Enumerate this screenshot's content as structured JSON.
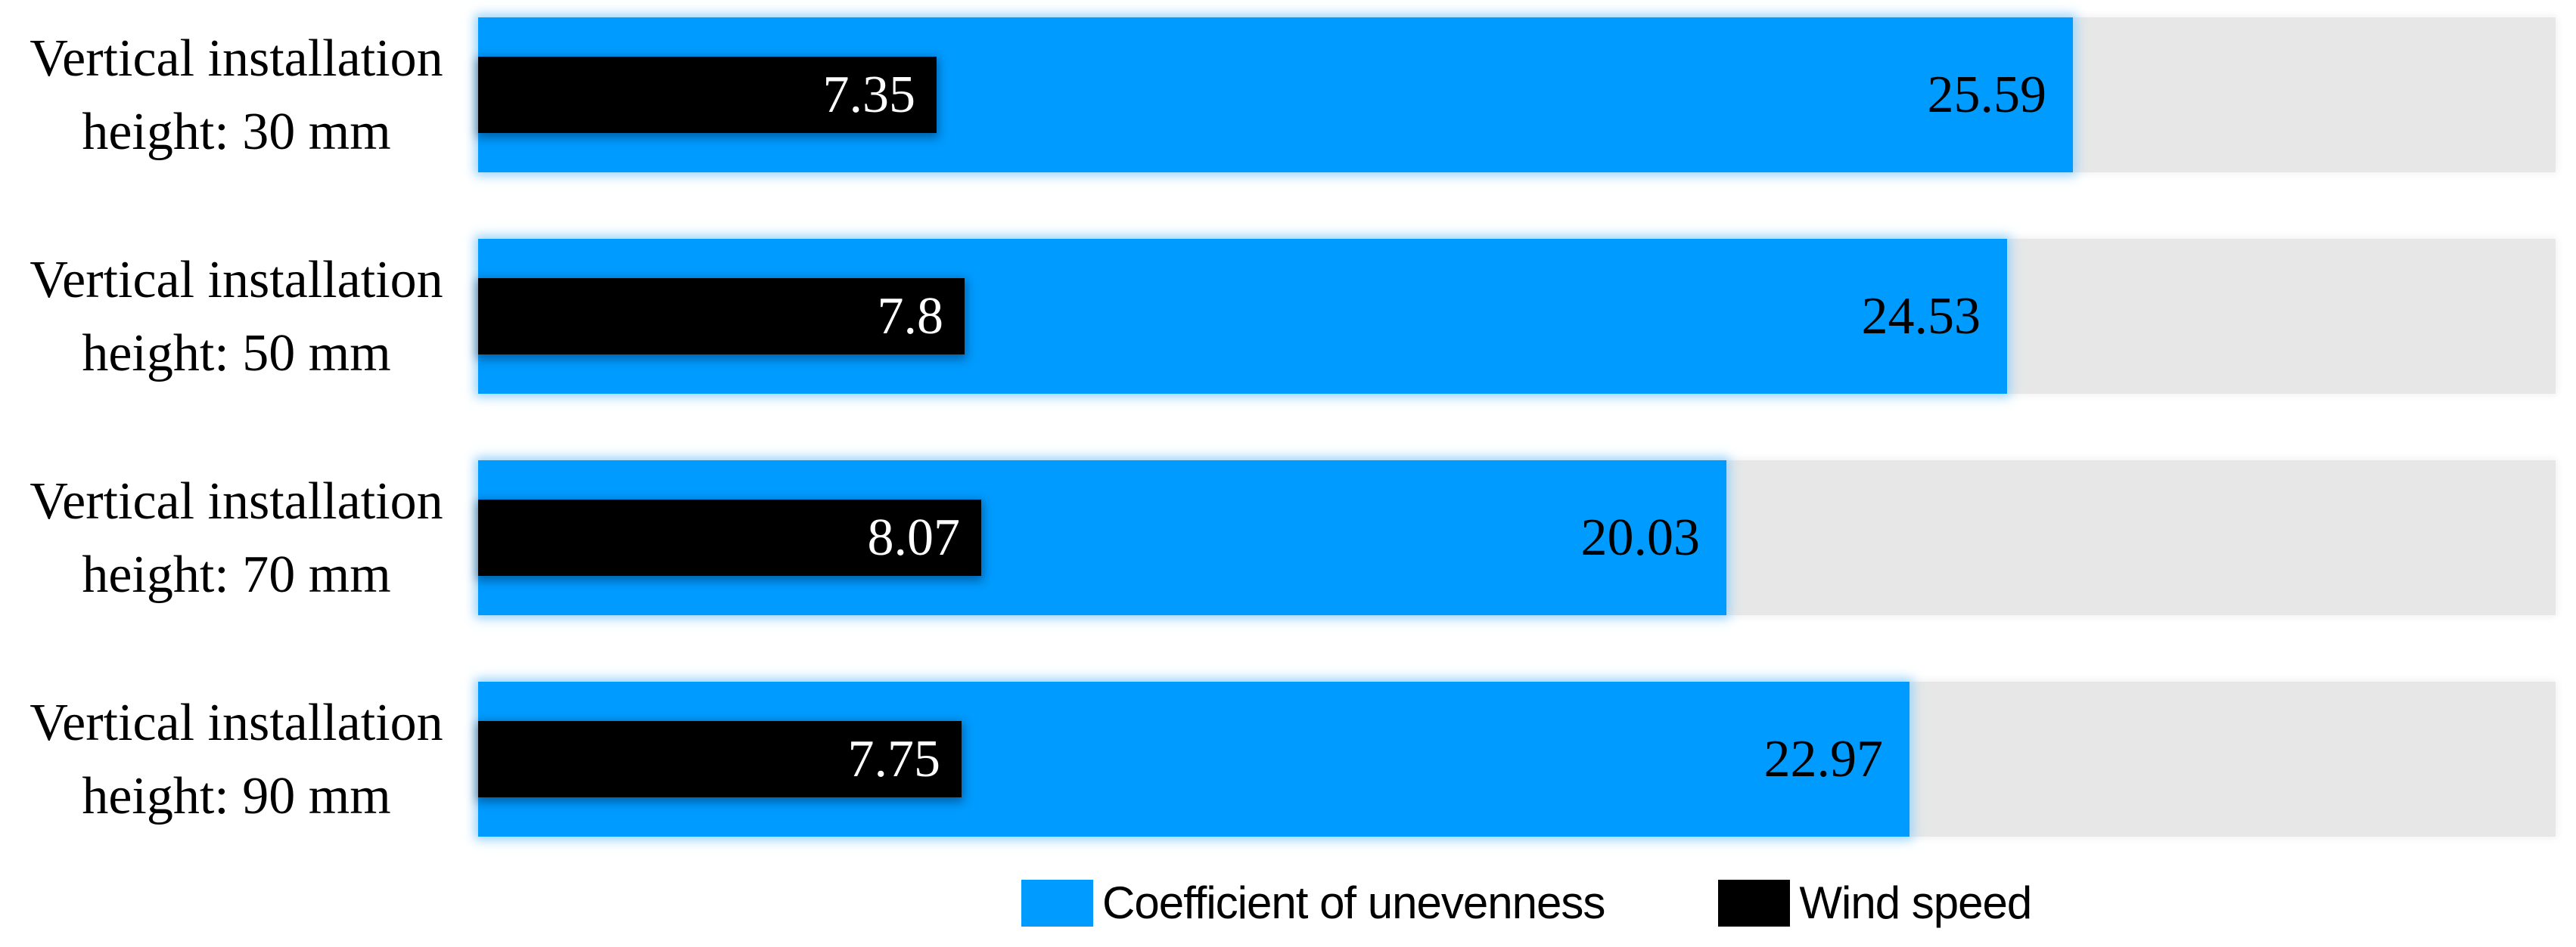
{
  "colors": {
    "bar_primary": "#009BFE",
    "bar_secondary": "#000000",
    "track": "#E7E7E7",
    "value_on_primary": "#000000",
    "value_on_secondary": "#FFFFFF",
    "background": "#FFFFFF"
  },
  "chart_data": {
    "type": "bar",
    "orientation": "horizontal",
    "title": "",
    "xlabel": "",
    "ylabel": "",
    "xlim": [
      0,
      33.33
    ],
    "grid": false,
    "legend_position": "bottom",
    "categories": [
      "Vertical installation height: 30 mm",
      "Vertical installation height: 50 mm",
      "Vertical installation height: 70 mm",
      "Vertical installation height: 90 mm"
    ],
    "category_lines": [
      [
        "Vertical installation",
        "height: 30 mm"
      ],
      [
        "Vertical installation",
        "height: 50 mm"
      ],
      [
        "Vertical installation",
        "height: 70 mm"
      ],
      [
        "Vertical installation",
        "height: 90 mm"
      ]
    ],
    "series": [
      {
        "name": "Coefficient of unevenness",
        "color": "#009BFE",
        "label_color": "#000000",
        "values": [
          25.59,
          24.53,
          20.03,
          22.97
        ],
        "labels": [
          "25.59",
          "24.53",
          "20.03",
          "22.97"
        ]
      },
      {
        "name": "Wind speed",
        "color": "#000000",
        "label_color": "#FFFFFF",
        "values": [
          7.35,
          7.8,
          8.07,
          7.75
        ],
        "labels": [
          "7.35",
          "7.8",
          "8.07",
          "7.75"
        ]
      }
    ]
  },
  "legend": {
    "entries": [
      {
        "label": "Coefficient of unevenness",
        "color": "#009BFE"
      },
      {
        "label": "Wind speed",
        "color": "#000000"
      }
    ]
  }
}
